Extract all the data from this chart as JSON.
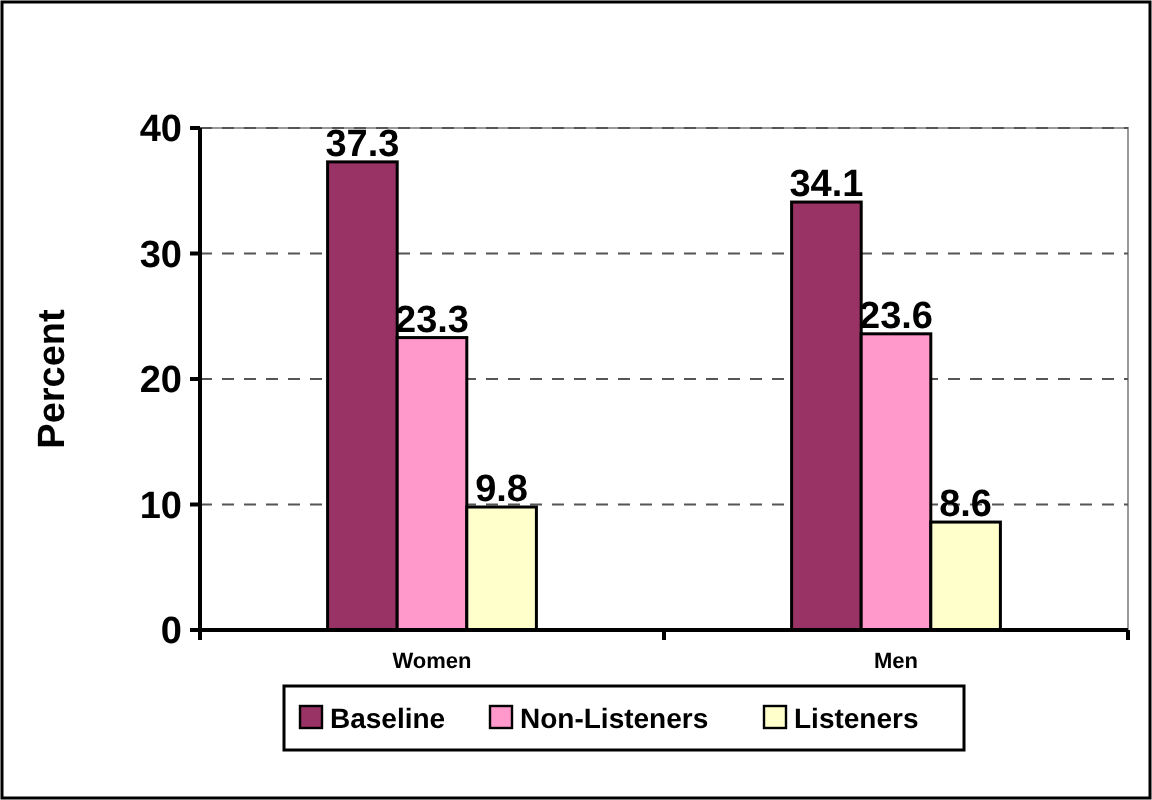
{
  "chart_data": {
    "type": "bar",
    "ylabel": "Percent",
    "categories": [
      "Women",
      "Men"
    ],
    "series": [
      {
        "name": "Baseline",
        "color": "#993366",
        "values": [
          37.3,
          34.1
        ]
      },
      {
        "name": "Non-Listeners",
        "color": "#ff99cc",
        "values": [
          23.3,
          23.6
        ]
      },
      {
        "name": "Listeners",
        "color": "#ffffcc",
        "values": [
          9.8,
          8.6
        ]
      }
    ],
    "ylim": [
      0,
      40
    ],
    "yticks": [
      0,
      10,
      20,
      30,
      40
    ],
    "grid": "y",
    "legend": "bottom",
    "data_labels": true
  }
}
